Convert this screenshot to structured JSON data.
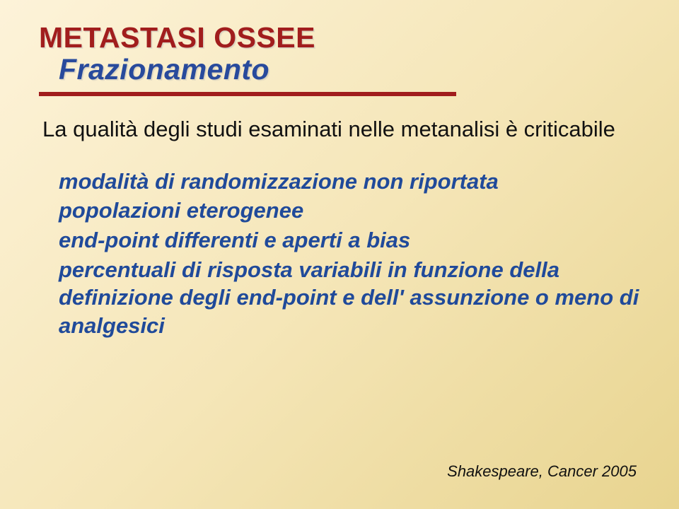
{
  "title": {
    "line1": "METASTASI OSSEE",
    "line2": "Frazionamento"
  },
  "lead": "La qualità degli studi esaminati nelle metanalisi è criticabile",
  "points": [
    "modalità di randomizzazione non riportata",
    "popolazioni eterogenee",
    "end-point differenti e aperti a bias",
    "percentuali di risposta variabili in funzione della definizione degli end-point e dell' assunzione o meno di analgesici"
  ],
  "citation": "Shakespeare, Cancer 2005",
  "colors": {
    "red": "#a11d1d",
    "blue": "#204a9a",
    "bg_top": "#fdf3d9",
    "bg_bottom": "#e8d48f"
  },
  "fonts": {
    "family": "Verdana",
    "title_size_pt": 31,
    "body_size_pt": 23,
    "citation_size_pt": 16
  }
}
